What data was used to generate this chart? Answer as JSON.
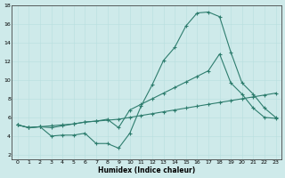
{
  "xlabel": "Humidex (Indice chaleur)",
  "background_color": "#ceeaea",
  "line_color": "#2e7d6e",
  "xlim": [
    -0.5,
    23.5
  ],
  "ylim": [
    1.5,
    18.0
  ],
  "xticks": [
    0,
    1,
    2,
    3,
    4,
    5,
    6,
    7,
    8,
    9,
    10,
    11,
    12,
    13,
    14,
    15,
    16,
    17,
    18,
    19,
    20,
    21,
    22,
    23
  ],
  "yticks": [
    2,
    4,
    6,
    8,
    10,
    12,
    14,
    16,
    18
  ],
  "series1_x": [
    0,
    1,
    2,
    3,
    4,
    5,
    6,
    7,
    8,
    9,
    10,
    11,
    12,
    13,
    14,
    15,
    16,
    17,
    18,
    19,
    20,
    21,
    22,
    23
  ],
  "series1_y": [
    5.2,
    4.9,
    5.0,
    4.0,
    4.1,
    4.1,
    4.3,
    3.2,
    3.2,
    2.7,
    4.3,
    7.2,
    9.5,
    12.1,
    13.5,
    15.8,
    17.2,
    17.3,
    16.8,
    13.0,
    9.7,
    8.5,
    7.0,
    6.0
  ],
  "series2_x": [
    0,
    1,
    2,
    3,
    4,
    5,
    6,
    7,
    8,
    9,
    10,
    11,
    12,
    13,
    14,
    15,
    16,
    17,
    18,
    19,
    20,
    21,
    22,
    23
  ],
  "series2_y": [
    5.2,
    4.9,
    5.0,
    4.9,
    5.1,
    5.3,
    5.5,
    5.6,
    5.8,
    4.9,
    6.8,
    7.4,
    8.0,
    8.6,
    9.2,
    9.8,
    10.4,
    11.0,
    12.8,
    9.7,
    8.5,
    7.0,
    6.0,
    5.9
  ],
  "series3_x": [
    0,
    1,
    2,
    3,
    4,
    5,
    6,
    7,
    8,
    9,
    10,
    11,
    12,
    13,
    14,
    15,
    16,
    17,
    18,
    19,
    20,
    21,
    22,
    23
  ],
  "series3_y": [
    5.2,
    4.9,
    5.0,
    5.1,
    5.2,
    5.3,
    5.5,
    5.6,
    5.7,
    5.8,
    6.0,
    6.2,
    6.4,
    6.6,
    6.8,
    7.0,
    7.2,
    7.4,
    7.6,
    7.8,
    8.0,
    8.2,
    8.4,
    8.6
  ],
  "grid_color": "#b8dede",
  "xlabel_fontsize": 5.5,
  "tick_fontsize": 4.5,
  "linewidth": 0.8,
  "markersize": 3.0
}
